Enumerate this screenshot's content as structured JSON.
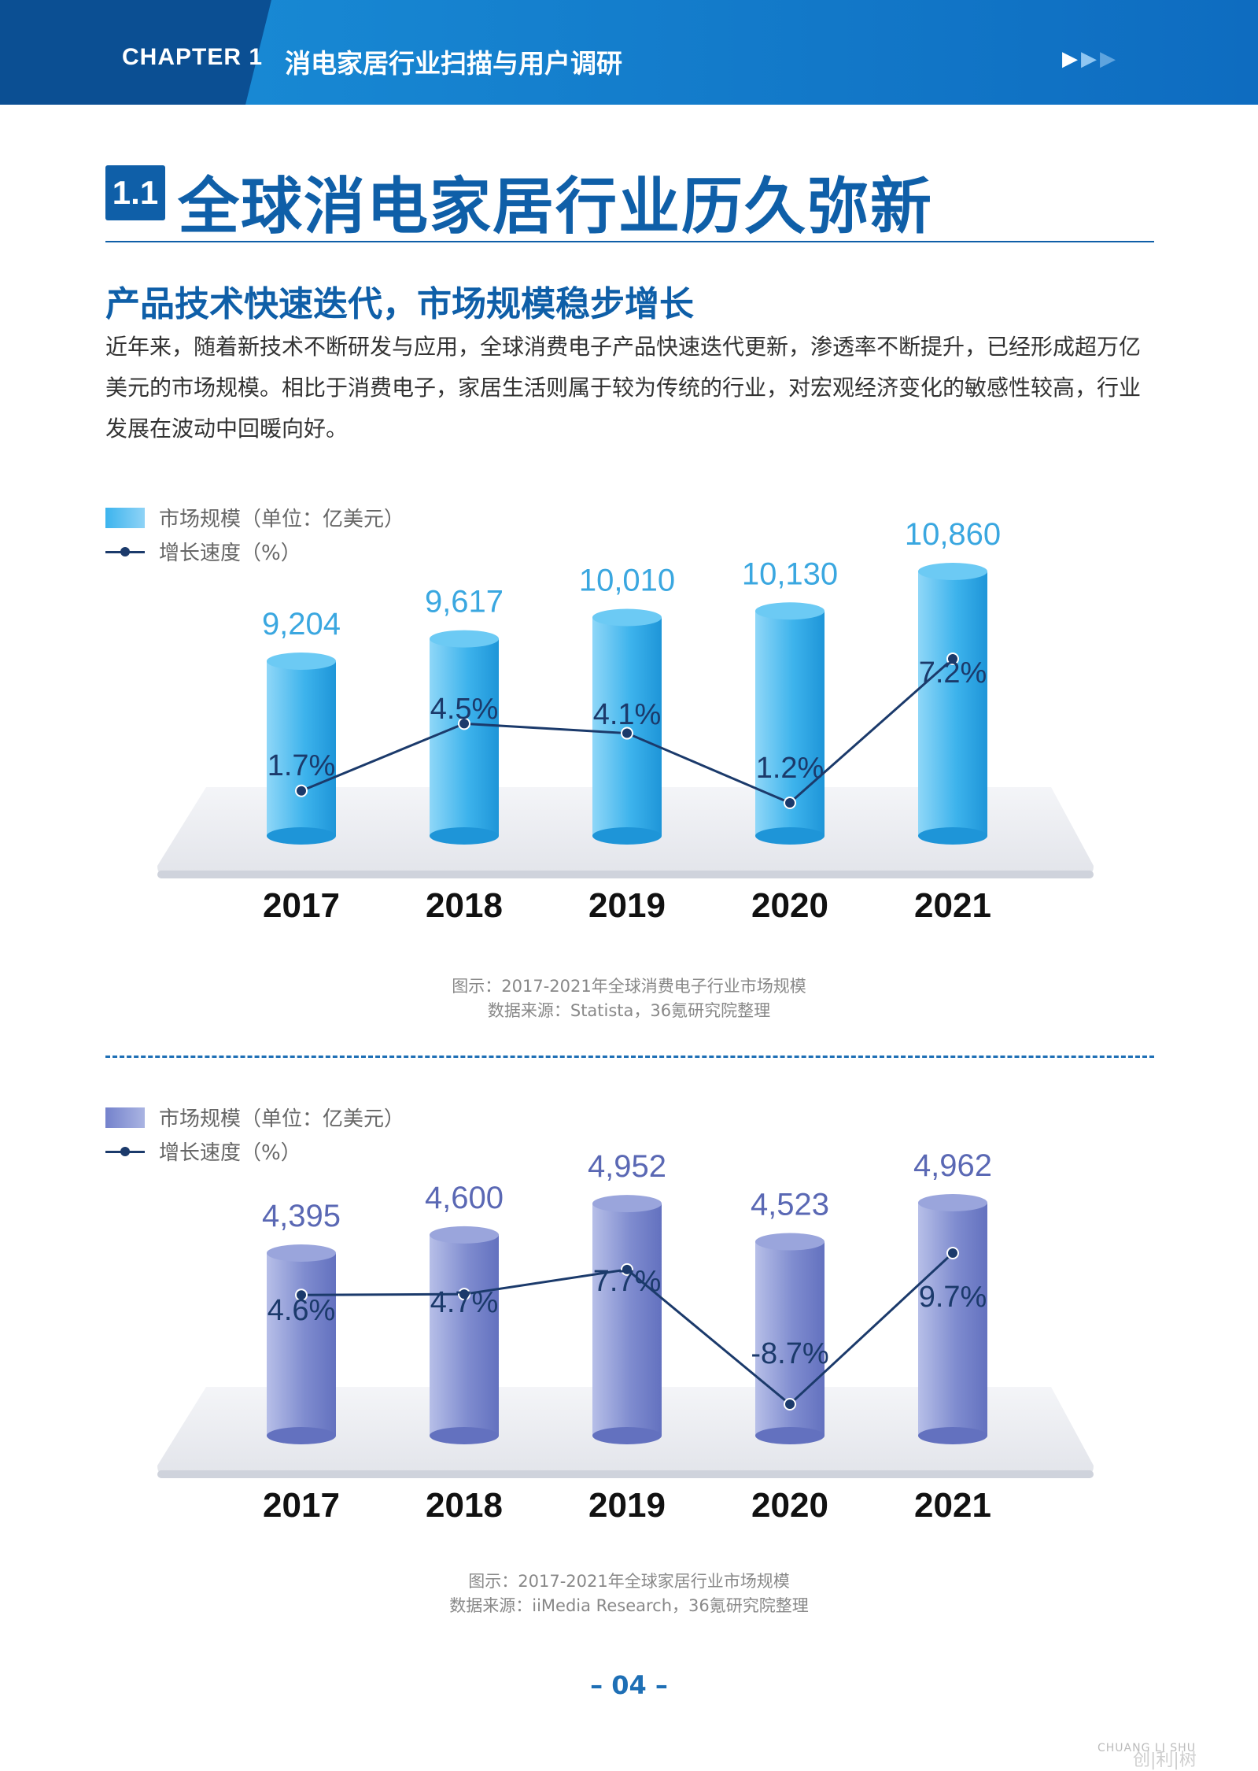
{
  "header": {
    "chapter": "CHAPTER 1",
    "title": "消电家居行业扫描与用户调研",
    "arrows": "▶▶▶"
  },
  "section": {
    "number": "1.1",
    "title": "全球消电家居行业历久弥新"
  },
  "subtitle": "产品技术快速迭代，市场规模稳步增长",
  "paragraph": "近年来，随着新技术不断研发与应用，全球消费电子产品快速迭代更新，渗透率不断提升，已经形成超万亿美元的市场规模。相比于消费电子，家居生活则属于较为传统的行业，对宏观经济变化的敏感性较高，行业发展在波动中回暖向好。",
  "chart_data": [
    {
      "type": "bar",
      "categories": [
        "2017",
        "2018",
        "2019",
        "2020",
        "2021"
      ],
      "series": [
        {
          "name": "市场规模（单位：亿美元）",
          "values": [
            9204,
            9617,
            10010,
            10130,
            10860
          ],
          "labels": [
            "9,204",
            "9,617",
            "10,010",
            "10,130",
            "10,860"
          ]
        },
        {
          "name": "增长速度（%）",
          "values": [
            1.7,
            4.5,
            4.1,
            1.2,
            7.2
          ],
          "labels": [
            "1.7%",
            "4.5%",
            "4.1%",
            "1.2%",
            "7.2%"
          ]
        }
      ],
      "caption": "图示：2017-2021年全球消费电子行业市场规模",
      "source": "数据来源：Statista，36氪研究院整理",
      "colors": {
        "bar": "#2ba6e6",
        "line": "#1b3a6b"
      }
    },
    {
      "type": "bar",
      "categories": [
        "2017",
        "2018",
        "2019",
        "2020",
        "2021"
      ],
      "series": [
        {
          "name": "市场规模（单位：亿美元）",
          "values": [
            4395,
            4600,
            4952,
            4523,
            4962
          ],
          "labels": [
            "4,395",
            "4,600",
            "4,952",
            "4,523",
            "4,962"
          ]
        },
        {
          "name": "增长速度（%）",
          "values": [
            4.6,
            4.7,
            7.7,
            -8.7,
            9.7
          ],
          "labels": [
            "4.6%",
            "4.7%",
            "7.7%",
            "-8.7%",
            "9.7%"
          ]
        }
      ],
      "caption": "图示：2017-2021年全球家居行业市场规模",
      "source": "数据来源：iiMedia Research，36氪研究院整理",
      "colors": {
        "bar": "#6f7ec8",
        "line": "#1b3a6b"
      }
    }
  ],
  "page_number": "– 04 –",
  "watermark": {
    "en": "CHUANG LI SHU",
    "zh": "创|利|树"
  }
}
